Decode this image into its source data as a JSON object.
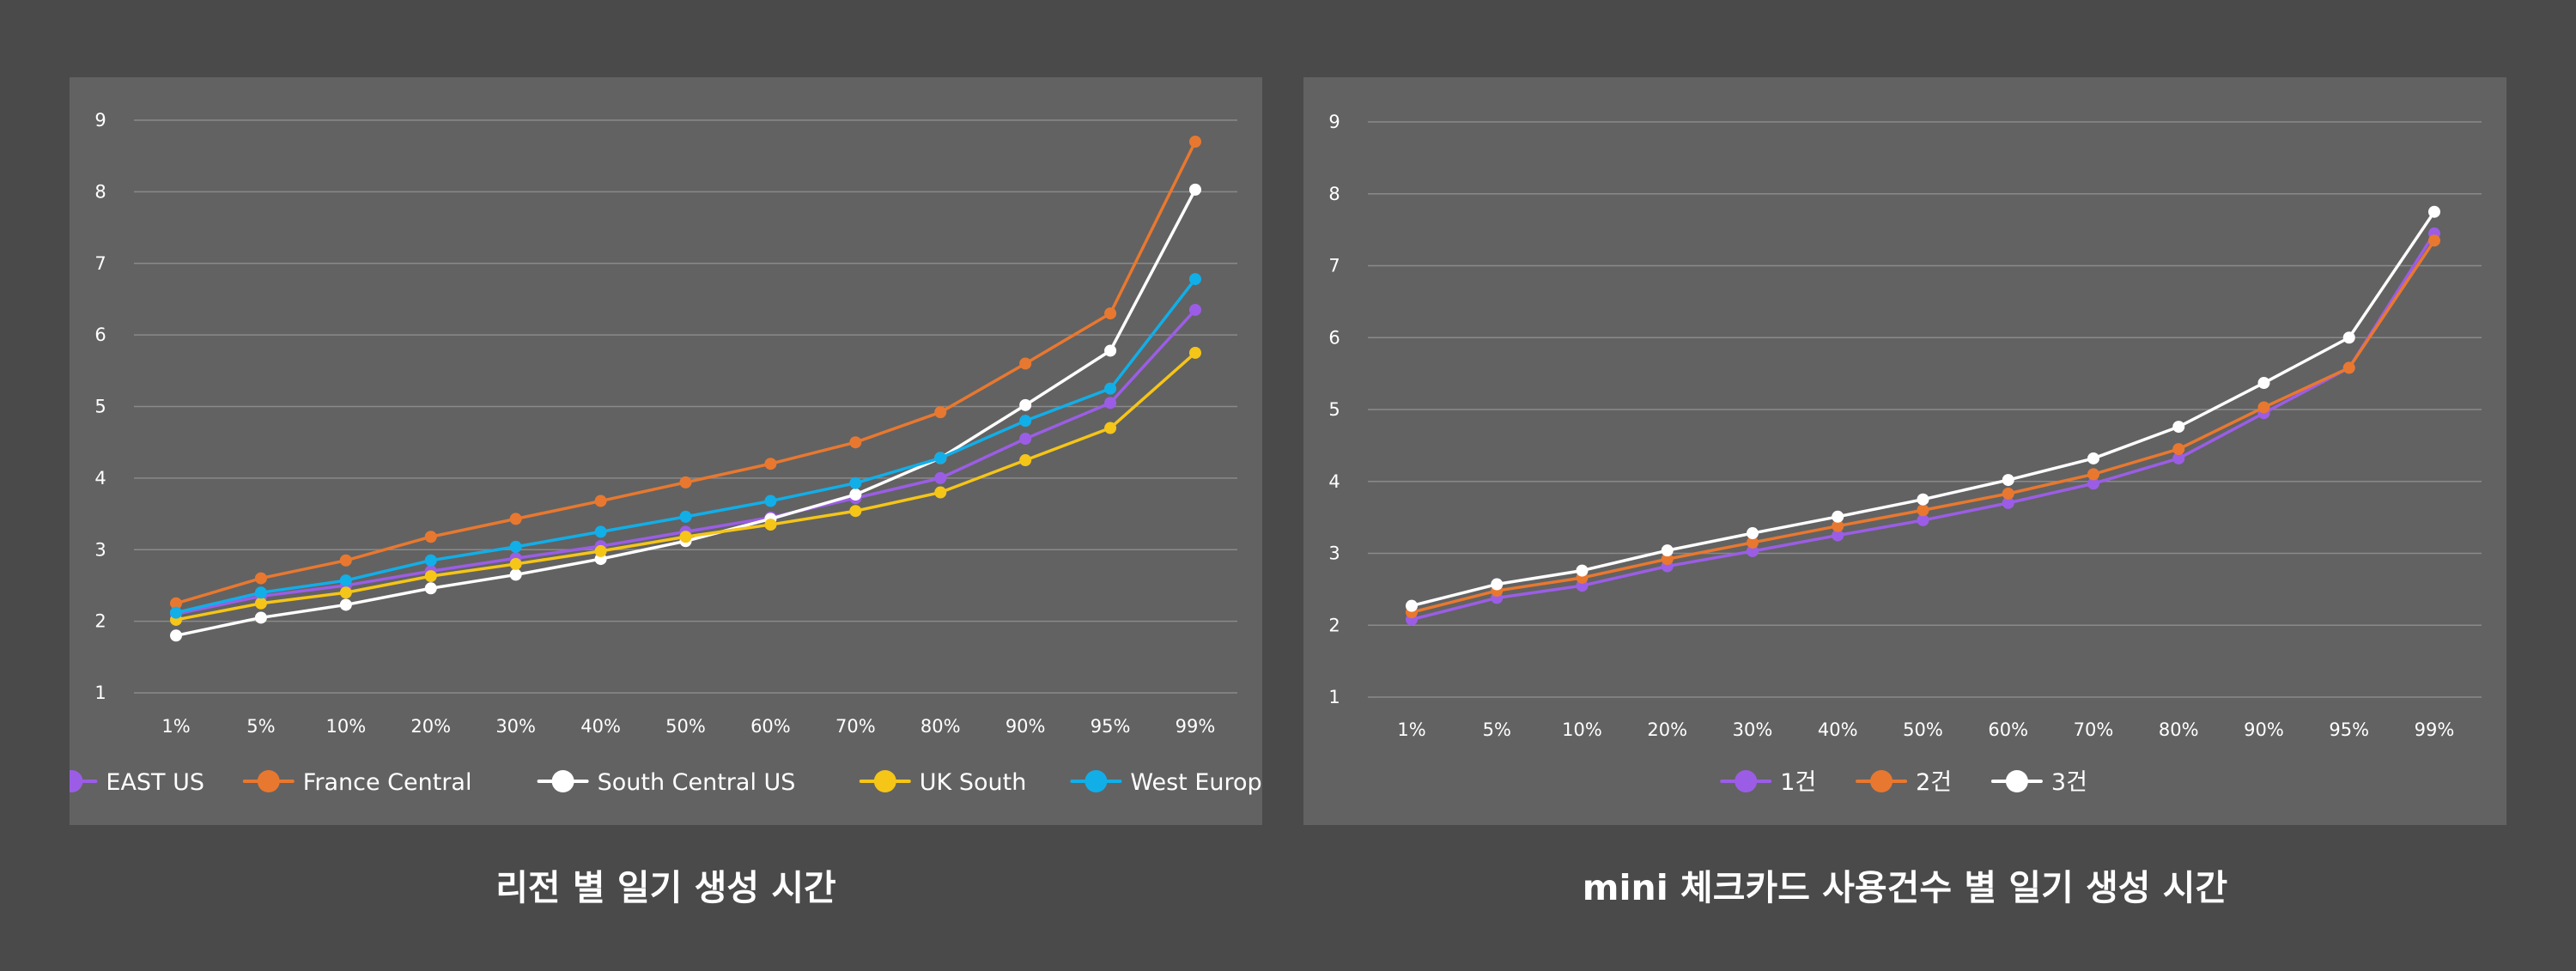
{
  "colors": {
    "background": "#4a4a4a",
    "panel": "#626262",
    "grid": "#8a8a8a",
    "purple": "#9b5de5",
    "orange": "#e8782f",
    "white": "#ffffff",
    "yellow": "#f5c518",
    "cyan": "#12aee8"
  },
  "captions": {
    "left": "리전 별 일기 생성 시간",
    "right": "mini 체크카드 사용건수 별 일기 생성 시간"
  },
  "chart_data": [
    {
      "type": "line",
      "title": "리전 별 일기 생성 시간",
      "categories": [
        "1%",
        "5%",
        "10%",
        "20%",
        "30%",
        "40%",
        "50%",
        "60%",
        "70%",
        "80%",
        "90%",
        "95%",
        "99%"
      ],
      "y_ticks": [
        1,
        2,
        3,
        4,
        5,
        6,
        7,
        8,
        9
      ],
      "ylim": [
        1,
        9
      ],
      "grid": true,
      "legend_position": "bottom-center",
      "series": [
        {
          "name": "EAST US",
          "color": "#9b5de5",
          "values": [
            2.1,
            2.35,
            2.5,
            2.7,
            2.88,
            3.05,
            3.25,
            3.45,
            3.72,
            4.0,
            4.55,
            5.05,
            6.35
          ]
        },
        {
          "name": "France Central",
          "color": "#e8782f",
          "values": [
            2.25,
            2.6,
            2.85,
            3.18,
            3.43,
            3.68,
            3.94,
            4.2,
            4.5,
            4.92,
            5.6,
            6.3,
            8.7
          ]
        },
        {
          "name": "South Central US",
          "color": "#ffffff",
          "values": [
            1.8,
            2.05,
            2.23,
            2.46,
            2.65,
            2.87,
            3.12,
            3.43,
            3.77,
            4.28,
            5.02,
            5.78,
            8.03
          ]
        },
        {
          "name": "UK South",
          "color": "#f5c518",
          "values": [
            2.02,
            2.25,
            2.4,
            2.63,
            2.8,
            2.98,
            3.18,
            3.35,
            3.54,
            3.8,
            4.25,
            4.7,
            5.75
          ]
        },
        {
          "name": "West Europe",
          "color": "#12aee8",
          "values": [
            2.12,
            2.4,
            2.57,
            2.85,
            3.04,
            3.25,
            3.46,
            3.68,
            3.93,
            4.28,
            4.8,
            5.25,
            6.78
          ]
        }
      ]
    },
    {
      "type": "line",
      "title": "mini 체크카드 사용건수 별 일기 생성 시간",
      "categories": [
        "1%",
        "5%",
        "10%",
        "20%",
        "30%",
        "40%",
        "50%",
        "60%",
        "70%",
        "80%",
        "90%",
        "95%",
        "99%"
      ],
      "y_ticks": [
        1,
        2,
        3,
        4,
        5,
        6,
        7,
        8,
        9
      ],
      "ylim": [
        1,
        9
      ],
      "grid": true,
      "legend_position": "bottom-center",
      "series": [
        {
          "name": "1건",
          "color": "#9b5de5",
          "values": [
            2.08,
            2.38,
            2.55,
            2.82,
            3.03,
            3.25,
            3.46,
            3.7,
            3.97,
            4.32,
            4.95,
            5.58,
            7.45
          ]
        },
        {
          "name": "2건",
          "color": "#e8782f",
          "values": [
            2.18,
            2.48,
            2.66,
            2.92,
            3.15,
            3.38,
            3.6,
            3.83,
            4.1,
            4.45,
            5.03,
            5.58,
            7.35
          ]
        },
        {
          "name": "3건",
          "color": "#ffffff",
          "values": [
            2.27,
            2.57,
            2.76,
            3.04,
            3.28,
            3.51,
            3.75,
            4.02,
            4.32,
            4.76,
            5.37,
            6.0,
            7.75
          ]
        }
      ]
    }
  ]
}
